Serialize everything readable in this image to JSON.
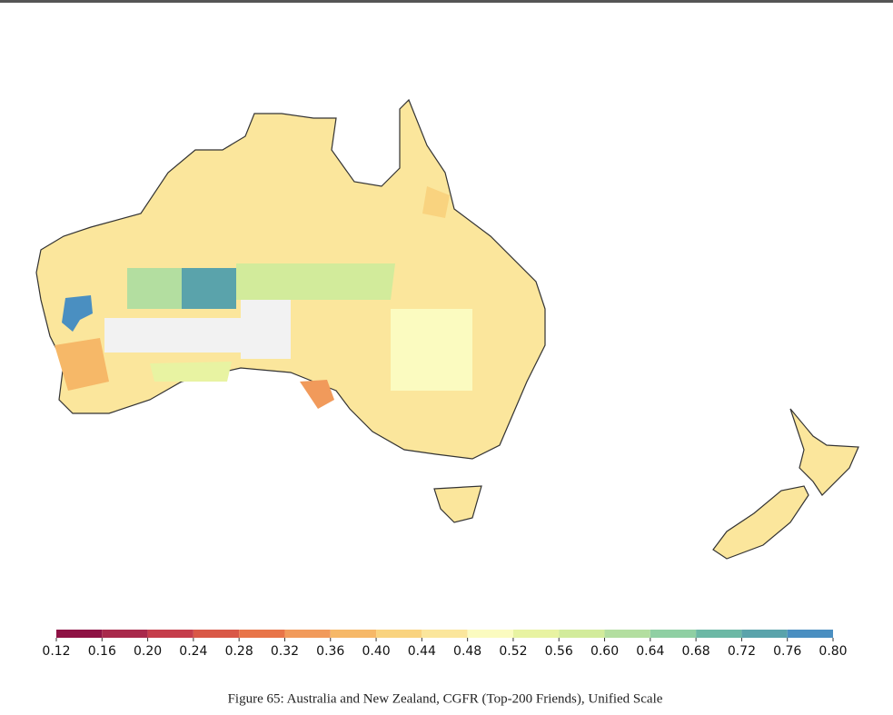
{
  "chart_data": {
    "type": "choropleth",
    "caption": "Figure 65: Australia and New Zealand, CGFR (Top-200 Friends), Unified Scale",
    "colorbar": {
      "ticks": [
        0.12,
        0.16,
        {
          "value": 0.2,
          "label": "0.20"
        },
        0.24,
        0.28,
        0.32,
        0.36,
        {
          "value": 0.4,
          "label": "0.40"
        },
        0.44,
        0.48,
        0.52,
        0.56,
        {
          "value": 0.6,
          "label": "0.60"
        },
        0.64,
        0.68,
        0.72,
        0.76,
        {
          "value": 0.8,
          "label": "0.80"
        }
      ],
      "lim": [
        0.12,
        0.8
      ],
      "colors": [
        "#8e1244",
        "#a8294b",
        "#c53d4b",
        "#d95847",
        "#e87448",
        "#f19a5b",
        "#f6b868",
        "#f9d37f",
        "#fbe69c",
        "#fbfbc0",
        "#e8f3a2",
        "#d2eb9b",
        "#b3dea0",
        "#8fcfa3",
        "#6cb8a5",
        "#5aa3ab",
        "#4a8fc1"
      ]
    },
    "region_values": [
      0.45,
      0.45,
      0.45,
      0.45,
      0.78,
      0.73,
      0.62,
      0.57,
      0.5,
      0.34,
      0.38,
      0.54,
      0.4
    ]
  }
}
